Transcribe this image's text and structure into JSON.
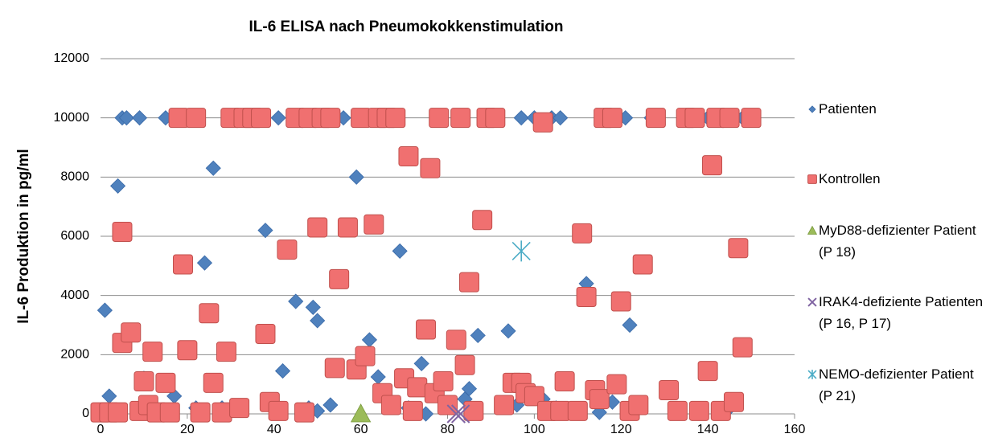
{
  "chart_data": {
    "type": "scatter",
    "title": "IL-6 ELISA nach Pneumokokkenstimulation",
    "y_label": "IL-6 Produktion in pg/ml",
    "xlim": [
      0,
      160
    ],
    "xticks": [
      0,
      20,
      40,
      60,
      80,
      100,
      120,
      140,
      160
    ],
    "ylim": [
      0,
      12000
    ],
    "yticks": [
      0,
      2000,
      4000,
      6000,
      8000,
      10000,
      12000
    ],
    "grid": true,
    "legend": "right",
    "series": [
      {
        "name": "Patienten",
        "color": "#4f81bd",
        "marker": "diamond",
        "x": [
          1,
          2,
          4,
          5,
          6,
          9,
          10,
          12,
          15,
          17,
          20,
          22,
          24,
          26,
          28,
          30,
          35,
          38,
          41,
          42,
          45,
          48,
          49,
          50,
          53,
          56,
          59,
          62,
          64,
          65,
          69,
          71,
          74,
          78,
          80,
          84,
          85,
          87,
          90,
          94,
          96,
          97,
          98,
          100,
          102,
          104,
          105,
          106,
          112,
          116,
          118,
          121,
          122,
          127,
          135,
          140,
          145,
          148,
          50,
          75,
          115
        ],
        "values": [
          3500,
          600,
          7700,
          10000,
          10000,
          10000,
          1200,
          200,
          10000,
          600,
          10000,
          200,
          5100,
          8300,
          200,
          10000,
          10000,
          6200,
          10000,
          1450,
          3800,
          200,
          3600,
          3150,
          300,
          10000,
          8000,
          2500,
          1250,
          10000,
          5500,
          200,
          1700,
          10000,
          300,
          500,
          850,
          2650,
          10000,
          2800,
          300,
          10000,
          900,
          10000,
          500,
          10000,
          200,
          10000,
          4400,
          10000,
          400,
          10000,
          3000,
          10000,
          10000,
          10000,
          200,
          10000,
          100,
          0,
          50
        ]
      },
      {
        "name": "Kontrollen",
        "color": "#f07070",
        "marker": "square",
        "x": [
          0,
          2,
          5,
          5,
          7,
          4,
          9,
          10,
          11,
          12,
          13,
          15,
          16,
          18,
          19,
          20,
          22,
          23,
          25,
          26,
          28,
          29,
          30,
          32,
          33,
          35,
          37,
          38,
          39,
          41,
          43,
          45,
          47,
          48,
          50,
          51,
          53,
          54,
          55,
          57,
          59,
          60,
          61,
          63,
          64,
          65,
          66,
          67,
          68,
          70,
          71,
          72,
          73,
          75,
          76,
          77,
          78,
          79,
          80,
          82,
          83,
          84,
          85,
          86,
          88,
          89,
          91,
          93,
          95,
          97,
          98,
          100,
          102,
          103,
          106,
          107,
          110,
          111,
          112,
          114,
          115,
          116,
          118,
          119,
          120,
          122,
          124,
          125,
          128,
          131,
          133,
          135,
          137,
          138,
          140,
          141,
          142,
          143,
          145,
          146,
          147,
          148,
          150
        ],
        "values": [
          50,
          50,
          2400,
          6150,
          2750,
          50,
          100,
          1100,
          300,
          2100,
          50,
          1050,
          50,
          10000,
          5050,
          2150,
          10000,
          50,
          3400,
          1050,
          50,
          2100,
          10000,
          200,
          10000,
          10000,
          10000,
          2700,
          400,
          100,
          5550,
          10000,
          50,
          10000,
          6300,
          10000,
          10000,
          1550,
          4550,
          6300,
          1500,
          10000,
          1950,
          6400,
          10000,
          700,
          10000,
          300,
          10000,
          1200,
          8700,
          100,
          900,
          2850,
          8300,
          700,
          10000,
          1100,
          300,
          2500,
          10000,
          1650,
          4450,
          100,
          6550,
          10000,
          10000,
          300,
          1050,
          1050,
          700,
          600,
          9850,
          100,
          100,
          1100,
          100,
          6100,
          3950,
          800,
          500,
          10000,
          10000,
          1000,
          3800,
          100,
          300,
          5050,
          10000,
          800,
          100,
          10000,
          10000,
          100,
          1450,
          8400,
          10000,
          100,
          10000,
          400,
          5600,
          2250,
          10000
        ]
      },
      {
        "name": "MyD88-defizienter Patient (P 18)",
        "color": "#9bbb59",
        "marker": "triangle",
        "x": [
          60
        ],
        "values": [
          0
        ]
      },
      {
        "name": "IRAK4-defiziente Patienten (P 16, P 17)",
        "color": "#8064a2",
        "marker": "x",
        "x": [
          82,
          83
        ],
        "values": [
          0,
          0
        ]
      },
      {
        "name": "NEMO-defizienter Patient (P 21)",
        "color": "#4bacc6",
        "marker": "star",
        "x": [
          97
        ],
        "values": [
          5500
        ]
      }
    ]
  }
}
